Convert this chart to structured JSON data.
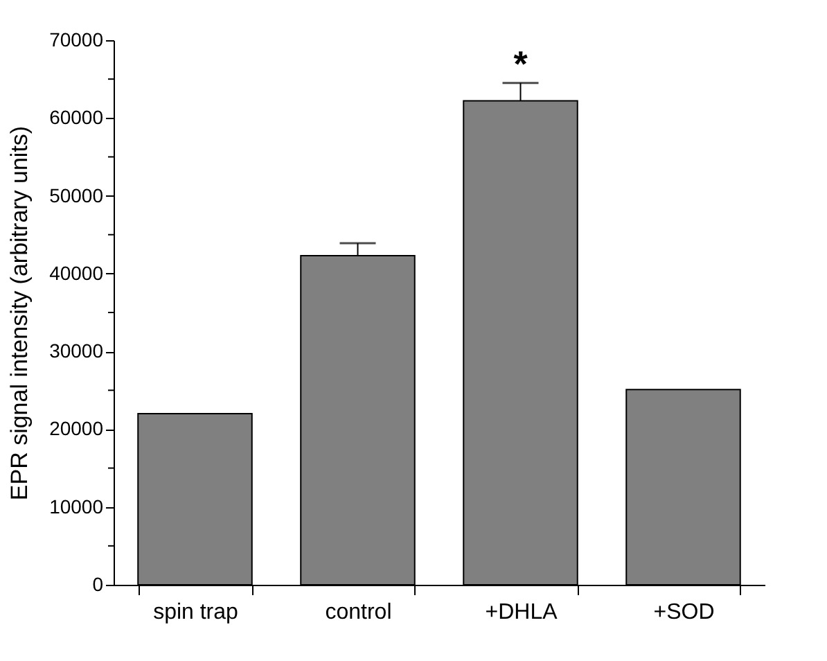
{
  "chart_data": {
    "type": "bar",
    "ylabel": "EPR signal intensity (arbitrary units)",
    "categories": [
      "spin trap",
      "control",
      "+DHLA",
      "+SOD"
    ],
    "values": [
      22000,
      42300,
      62200,
      25100
    ],
    "errors": [
      null,
      1600,
      2300,
      null
    ],
    "color": "#808080",
    "ylim": [
      0,
      70000
    ],
    "yticks": [
      0,
      {
        "value": 5000,
        "label": null
      },
      10000,
      {
        "value": 15000,
        "label": null
      },
      20000,
      {
        "value": 25000,
        "label": null
      },
      30000,
      {
        "value": 35000,
        "label": null
      },
      40000,
      {
        "value": 45000,
        "label": null
      },
      50000,
      {
        "value": 55000,
        "label": null
      },
      60000,
      {
        "value": 65000,
        "label": null
      },
      70000
    ],
    "annotations": [
      "*"
    ],
    "grid": false
  }
}
